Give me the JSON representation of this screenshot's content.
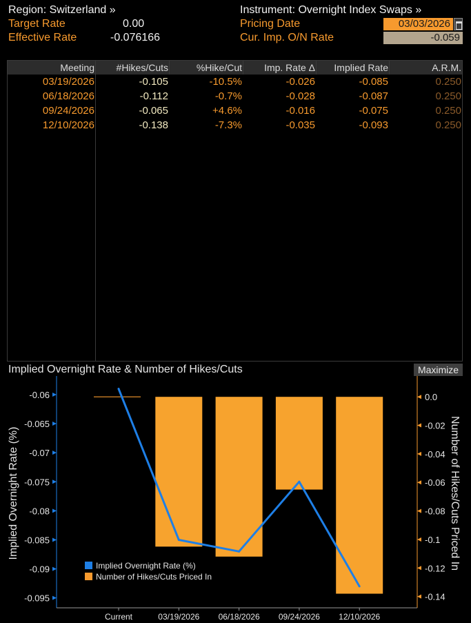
{
  "header": {
    "region_label": "Region: Switzerland »",
    "instrument_label": "Instrument: Overnight Index Swaps »",
    "target_rate_label": "Target Rate",
    "target_rate_value": "0.00",
    "effective_rate_label": "Effective Rate",
    "effective_rate_value": "-0.076166",
    "pricing_date_label": "Pricing Date",
    "pricing_date_value": "03/03/2026",
    "cur_imp_label": "Cur. Imp. O/N Rate",
    "cur_imp_value": "-0.059"
  },
  "table": {
    "columns": [
      "Meeting",
      "#Hikes/Cuts",
      "%Hike/Cut",
      "Imp. Rate Δ",
      "Implied Rate",
      "A.R.M."
    ],
    "rows": [
      {
        "meeting": "03/19/2026",
        "hikes_cuts": "-0.105",
        "pct_hike_cut": "-10.5%",
        "imp_rate_delta": "-0.026",
        "implied_rate": "-0.085",
        "arm": "0.250"
      },
      {
        "meeting": "06/18/2026",
        "hikes_cuts": "-0.112",
        "pct_hike_cut": "-0.7%",
        "imp_rate_delta": "-0.028",
        "implied_rate": "-0.087",
        "arm": "0.250"
      },
      {
        "meeting": "09/24/2026",
        "hikes_cuts": "-0.065",
        "pct_hike_cut": "+4.6%",
        "imp_rate_delta": "-0.016",
        "implied_rate": "-0.075",
        "arm": "0.250"
      },
      {
        "meeting": "12/10/2026",
        "hikes_cuts": "-0.138",
        "pct_hike_cut": "-7.3%",
        "imp_rate_delta": "-0.035",
        "implied_rate": "-0.093",
        "arm": "0.250"
      }
    ]
  },
  "chart": {
    "maximize_label": "Maximize"
  },
  "colors": {
    "accent": "#f79a2e",
    "line": "#1e7fe6",
    "value_text": "#f2e9c0"
  },
  "chart_data": {
    "type": "bar+line",
    "title": "Implied Overnight Rate & Number of Hikes/Cuts",
    "categories": [
      "Current",
      "03/19/2026",
      "06/18/2026",
      "09/24/2026",
      "12/10/2026"
    ],
    "series": [
      {
        "name": "Implied Overnight Rate (%)",
        "type": "line",
        "axis": "left",
        "values": [
          -0.059,
          -0.085,
          -0.087,
          -0.075,
          -0.093
        ]
      },
      {
        "name": "Number of Hikes/Cuts Priced In",
        "type": "bar",
        "axis": "right",
        "values": [
          0.0,
          -0.105,
          -0.112,
          -0.065,
          -0.138
        ]
      }
    ],
    "ylabel_left": "Implied Overnight Rate (%)",
    "ylabel_right": "Number of Hikes/Cuts Priced In",
    "left_ticks": [
      "-0.06",
      "-0.065",
      "-0.07",
      "-0.075",
      "-0.08",
      "-0.085",
      "-0.09",
      "-0.095"
    ],
    "left_tick_values": [
      -0.06,
      -0.065,
      -0.07,
      -0.075,
      -0.08,
      -0.085,
      -0.09,
      -0.095
    ],
    "right_ticks": [
      "0.0",
      "-0.02",
      "-0.04",
      "-0.06",
      "-0.08",
      "-0.1",
      "-0.12",
      "-0.14"
    ],
    "right_tick_values": [
      0.0,
      -0.02,
      -0.04,
      -0.06,
      -0.08,
      -0.1,
      -0.12,
      -0.14
    ],
    "ylim_left": [
      -0.0967,
      -0.0568
    ],
    "ylim_right": [
      -0.1479,
      0.0146
    ],
    "legend": [
      "Implied Overnight Rate (%)",
      "Number of Hikes/Cuts Priced In"
    ],
    "legend_position": "bottom-left"
  }
}
